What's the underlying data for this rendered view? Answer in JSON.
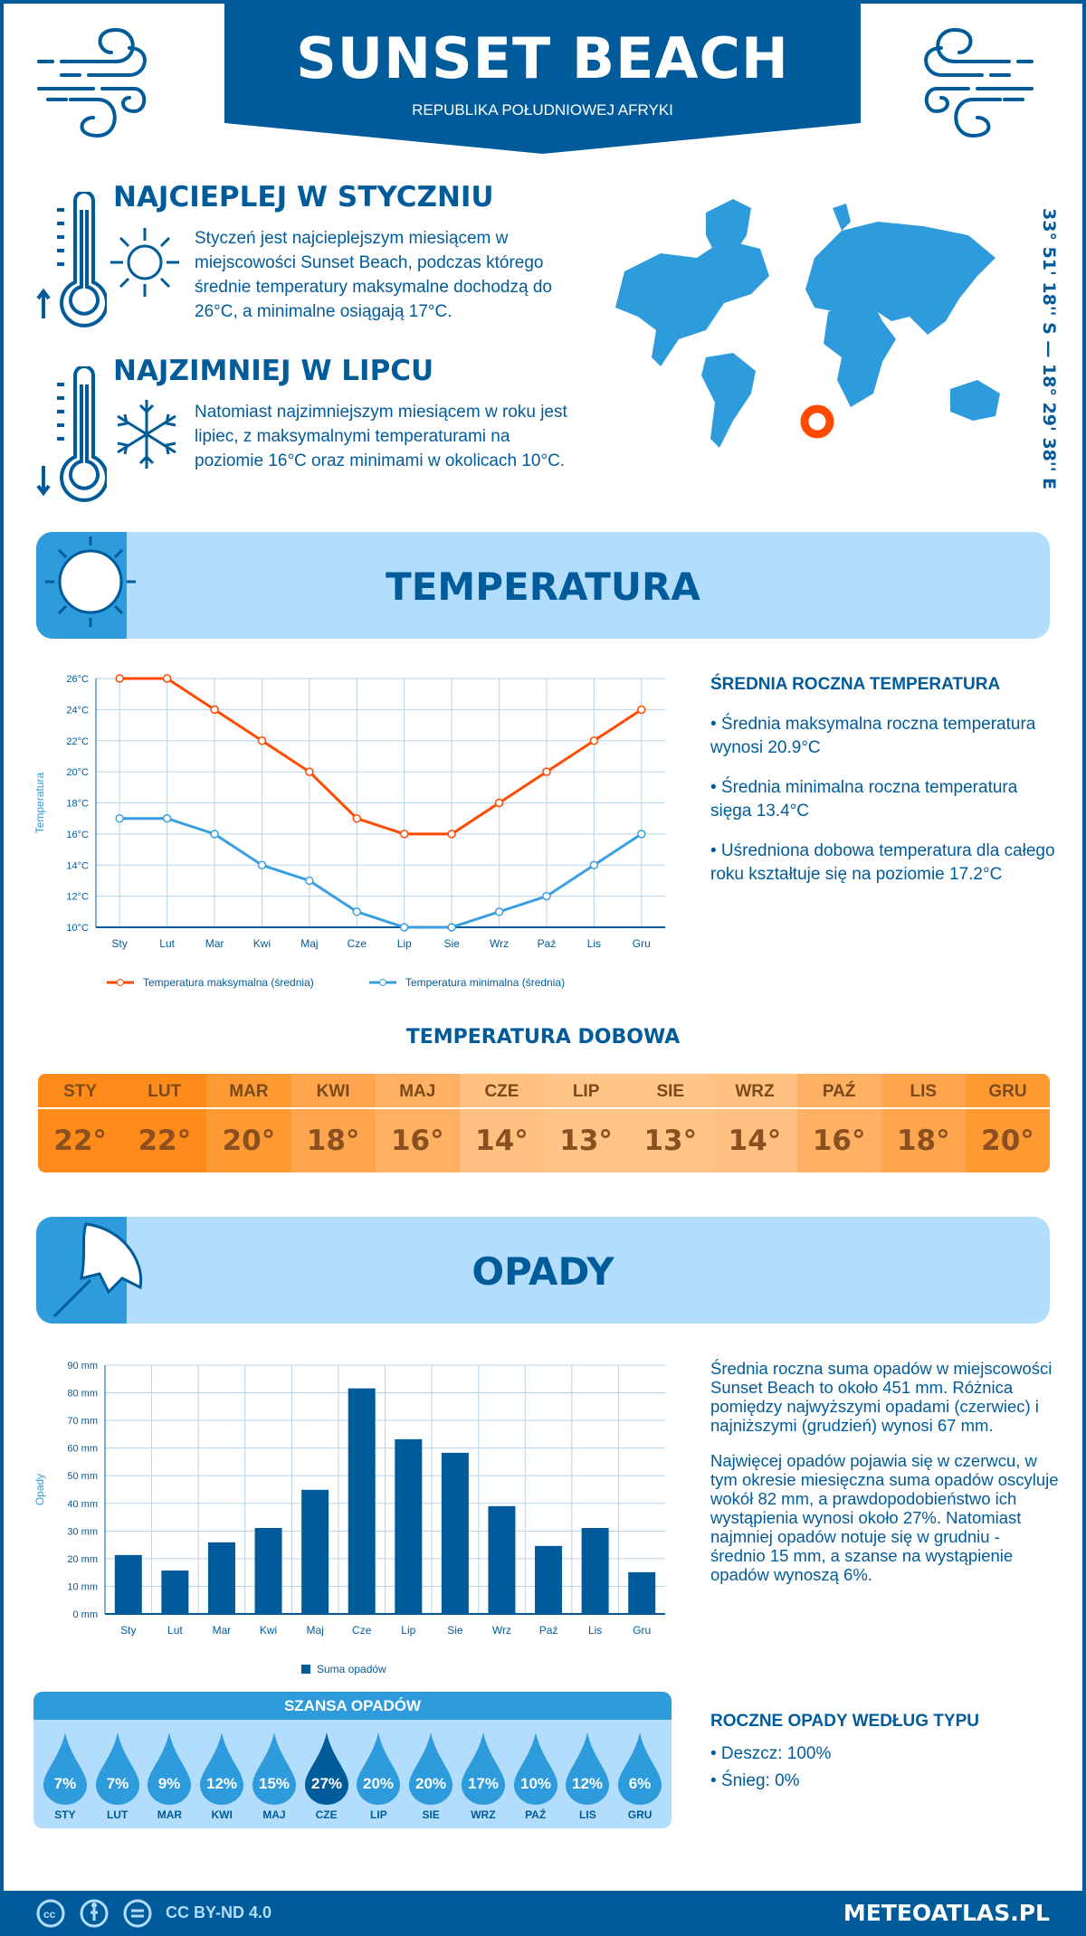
{
  "header": {
    "title": "SUNSET BEACH",
    "subtitle": "REPUBLIKA POŁUDNIOWEJ AFRYKI"
  },
  "warmest": {
    "heading": "NAJCIEPLEJ W STYCZNIU",
    "text": "Styczeń jest najcieplejszym miesiącem w miejscowości Sunset Beach, podczas którego średnie temperatury maksymalne dochodzą do 26°C, a minimalne osiągają 17°C."
  },
  "coldest": {
    "heading": "NAJZIMNIEJ W LIPCU",
    "text": "Natomiast najzimniejszym miesiącem w roku jest lipiec, z maksymalnymi temperaturami na poziomie 16°C oraz minimami w okolicach 10°C."
  },
  "coordinates": "33° 51' 18'' S — 18° 29' 38'' E",
  "map": {
    "marker_color": "#ff4a00",
    "land_color": "#2e9bdc"
  },
  "temperature": {
    "section_title": "TEMPERATURA",
    "stats_heading": "ŚREDNIA ROCZNA TEMPERATURA",
    "stats": [
      "• Średnia maksymalna roczna temperatura wynosi 20.9°C",
      "• Średnia minimalna roczna temperatura sięga 13.4°C",
      "• Uśredniona dobowa temperatura dla całego roku kształtuje się na poziomie 17.2°C"
    ]
  },
  "daily": {
    "title": "TEMPERATURA DOBOWA",
    "months": [
      "STY",
      "LUT",
      "MAR",
      "KWI",
      "MAJ",
      "CZE",
      "LIP",
      "SIE",
      "WRZ",
      "PAŹ",
      "LIS",
      "GRU"
    ],
    "values": [
      "22°",
      "22°",
      "20°",
      "18°",
      "16°",
      "14°",
      "13°",
      "13°",
      "14°",
      "16°",
      "18°",
      "20°"
    ],
    "colors": [
      "#ff8c1a",
      "#ff8c1a",
      "#ff9a33",
      "#ffa54d",
      "#ffb062",
      "#ffc080",
      "#ffc587",
      "#ffc587",
      "#ffc080",
      "#ffb062",
      "#ffa54d",
      "#ff9a33"
    ]
  },
  "precip": {
    "section_title": "OPADY",
    "text1": "Średnia roczna suma opadów w miejscowości Sunset Beach to około 451 mm. Różnica pomiędzy najwyższymi opadami (czerwiec) i najniższymi (grudzień) wynosi 67 mm.",
    "text2": "Najwięcej opadów pojawia się w czerwcu, w tym okresie miesięczna suma opadów oscyluje wokół 82 mm, a prawdopodobieństwo ich wystąpienia wynosi około 27%. Natomiast najmniej opadów notuje się w grudniu - średnio 15 mm, a szanse na wystąpienie opadów wynoszą 6%.",
    "chance_title": "SZANSA OPADÓW",
    "chance_months": [
      "STY",
      "LUT",
      "MAR",
      "KWI",
      "MAJ",
      "CZE",
      "LIP",
      "SIE",
      "WRZ",
      "PAŹ",
      "LIS",
      "GRU"
    ],
    "chance_values": [
      "7%",
      "7%",
      "9%",
      "12%",
      "15%",
      "27%",
      "20%",
      "20%",
      "17%",
      "10%",
      "12%",
      "6%"
    ],
    "type_heading": "ROCZNE OPADY WEDŁUG TYPU",
    "types": [
      "• Deszcz: 100%",
      "• Śnieg: 0%"
    ]
  },
  "footer": {
    "license": "CC BY-ND 4.0",
    "site": "METEOATLAS.PL"
  },
  "chart_data": [
    {
      "type": "line",
      "categories": [
        "Sty",
        "Lut",
        "Mar",
        "Kwi",
        "Maj",
        "Cze",
        "Lip",
        "Sie",
        "Wrz",
        "Paź",
        "Lis",
        "Gru"
      ],
      "ylabel": "Temperatura",
      "ylim": [
        10,
        26
      ],
      "yticks": [
        "10°C",
        "12°C",
        "14°C",
        "16°C",
        "18°C",
        "20°C",
        "22°C",
        "24°C",
        "26°C"
      ],
      "grid": true,
      "legend": "bottom",
      "series": [
        {
          "name": "Temperatura maksymalna (średnia)",
          "color": "#ff4a00",
          "values": [
            26,
            26,
            24,
            22,
            20,
            17,
            16,
            16,
            18,
            20,
            22,
            24
          ]
        },
        {
          "name": "Temperatura minimalna (średnia)",
          "color": "#3a9fe0",
          "values": [
            17,
            17,
            16,
            14,
            13,
            11,
            10,
            10,
            11,
            12,
            14,
            16
          ]
        }
      ]
    },
    {
      "type": "bar",
      "categories": [
        "Sty",
        "Lut",
        "Mar",
        "Kwi",
        "Maj",
        "Cze",
        "Lip",
        "Sie",
        "Wrz",
        "Paź",
        "Lis",
        "Gru"
      ],
      "ylabel": "Opady",
      "ylim": [
        0,
        90
      ],
      "yticks": [
        "0 mm",
        "10 mm",
        "20 mm",
        "30 mm",
        "40 mm",
        "50 mm",
        "60 mm",
        "70 mm",
        "80 mm",
        "90 mm"
      ],
      "grid": true,
      "legend": "bottom",
      "series": [
        {
          "name": "Suma opadów",
          "color": "#005b9a",
          "values": [
            21.3,
            15.7,
            25.9,
            31.1,
            44.9,
            81.6,
            63.2,
            58.3,
            39,
            24.6,
            31.1,
            15.1
          ]
        }
      ]
    }
  ]
}
